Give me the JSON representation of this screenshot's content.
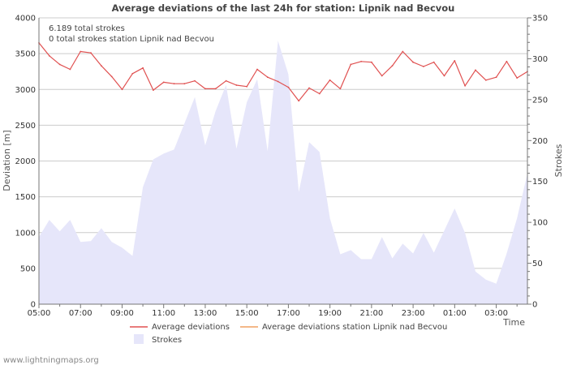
{
  "chart_data": {
    "type": "line",
    "title": "Average deviations of the last 24h for station: Lipnik nad Becvou",
    "xlabel": "Time",
    "ylabel_left": "Deviation  [m]",
    "ylabel_right": "Strokes",
    "notes": [
      "6.189 total strokes",
      "0 total strokes station Lipnik nad Becvou"
    ],
    "x_ticks": [
      "05:00",
      "07:00",
      "09:00",
      "11:00",
      "13:00",
      "15:00",
      "17:00",
      "19:00",
      "21:00",
      "23:00",
      "01:00",
      "03:00"
    ],
    "x_hours_range": [
      0,
      23.5
    ],
    "ylim_left": [
      0,
      4000
    ],
    "yticks_left": [
      0,
      500,
      1000,
      1500,
      2000,
      2500,
      3000,
      3500,
      4000
    ],
    "ylim_right": [
      0,
      350
    ],
    "yticks_right": [
      0,
      50,
      100,
      150,
      200,
      250,
      300,
      350
    ],
    "series": [
      {
        "name": "Average deviations",
        "kind": "line",
        "color": "#e05050",
        "x": [
          0,
          0.5,
          1,
          1.5,
          2,
          2.5,
          3,
          3.5,
          4,
          4.5,
          5,
          5.5,
          6,
          6.5,
          7,
          7.5,
          8,
          8.5,
          9,
          9.5,
          10,
          10.5,
          11,
          11.5,
          12,
          12.5,
          13,
          13.5,
          14,
          14.5,
          15,
          15.5,
          16,
          16.5,
          17,
          17.5,
          18,
          18.5,
          19,
          19.5,
          20,
          20.5,
          21,
          21.5,
          22,
          22.5,
          23,
          23.5
        ],
        "values": [
          3650,
          3470,
          3350,
          3280,
          3530,
          3510,
          3330,
          3180,
          3000,
          3220,
          3300,
          2990,
          3100,
          3080,
          3080,
          3120,
          3010,
          3010,
          3120,
          3060,
          3040,
          3280,
          3170,
          3110,
          3030,
          2840,
          3020,
          2940,
          3130,
          3010,
          3350,
          3390,
          3380,
          3190,
          3330,
          3530,
          3380,
          3320,
          3380,
          3190,
          3400,
          3050,
          3270,
          3130,
          3170,
          3390,
          3160,
          3250
        ]
      },
      {
        "name": "Average deviations station Lipnik nad Becvou",
        "kind": "line",
        "color": "#f0a060",
        "x": [],
        "values": []
      },
      {
        "name": "Strokes",
        "kind": "area",
        "axis": "right",
        "color": "#e6e6fa",
        "x": [
          0,
          0.5,
          1,
          1.5,
          2,
          2.5,
          3,
          3.5,
          4,
          4.5,
          5,
          5.5,
          6,
          6.5,
          7,
          7.5,
          8,
          8.5,
          9,
          9.5,
          10,
          10.5,
          11,
          11.5,
          12,
          12.5,
          13,
          13.5,
          14,
          14.5,
          15,
          15.5,
          16,
          16.5,
          17,
          17.5,
          18,
          18.5,
          19,
          19.5,
          20,
          20.5,
          21,
          21.5,
          22,
          22.5,
          23,
          23.5
        ],
        "values": [
          82,
          103,
          89,
          103,
          76,
          77,
          93,
          76,
          69,
          59,
          143,
          177,
          184,
          189,
          221,
          253,
          194,
          236,
          268,
          190,
          247,
          275,
          187,
          322,
          281,
          137,
          198,
          186,
          105,
          61,
          66,
          55,
          55,
          82,
          56,
          74,
          62,
          87,
          63,
          90,
          117,
          87,
          40,
          30,
          25,
          62,
          105,
          160
        ]
      }
    ]
  },
  "footer": "www.lightningmaps.org"
}
